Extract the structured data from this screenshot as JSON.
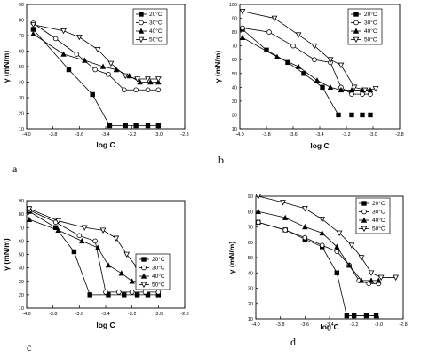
{
  "chart_data": [
    {
      "type": "line",
      "panel_label": "a",
      "xlabel": "log C",
      "ylabel": "γ (mN/m)",
      "xlim": [
        -4.0,
        -2.8
      ],
      "ylim": [
        10,
        90
      ],
      "xticks": [
        "-4.0",
        "-3.8",
        "-3.6",
        "-3.4",
        "-3.2",
        "-3.0",
        "-2.8"
      ],
      "yticks": [
        "10",
        "20",
        "30",
        "40",
        "50",
        "60",
        "70",
        "80",
        "90"
      ],
      "legend_position": "top-right",
      "series": [
        {
          "name": "20°C",
          "marker": "square-filled",
          "x": [
            -3.95,
            -3.68,
            -3.5,
            -3.37,
            -3.25,
            -3.17,
            -3.08,
            -3.0
          ],
          "y": [
            74,
            48,
            32,
            12,
            12,
            12,
            12,
            12
          ]
        },
        {
          "name": "30°C",
          "marker": "circle-open",
          "x": [
            -3.95,
            -3.78,
            -3.62,
            -3.48,
            -3.38,
            -3.26,
            -3.17,
            -3.08,
            -3.0
          ],
          "y": [
            78,
            68,
            58,
            48,
            45,
            35,
            35,
            35,
            35
          ]
        },
        {
          "name": "40°C",
          "marker": "triangle-filled",
          "x": [
            -3.95,
            -3.72,
            -3.56,
            -3.42,
            -3.32,
            -3.22,
            -3.14,
            -3.06,
            -3.0
          ],
          "y": [
            71,
            58,
            54,
            50,
            48,
            44,
            40,
            40,
            40
          ]
        },
        {
          "name": "50°C",
          "marker": "triangle-down-open",
          "x": [
            -3.95,
            -3.72,
            -3.6,
            -3.46,
            -3.36,
            -3.25,
            -3.16,
            -3.08,
            -3.0
          ],
          "y": [
            77,
            73,
            69,
            61,
            52,
            44,
            42,
            42,
            42
          ]
        }
      ]
    },
    {
      "type": "line",
      "panel_label": "b",
      "xlabel": "log C",
      "ylabel": "γ (mN/m)",
      "xlim": [
        -4.0,
        -2.8
      ],
      "ylim": [
        10,
        100
      ],
      "xticks": [
        "-4.0",
        "-3.8",
        "-3.6",
        "-3.4",
        "-3.2",
        "-3.0",
        "-2.8"
      ],
      "yticks": [
        "10",
        "20",
        "30",
        "40",
        "50",
        "60",
        "70",
        "80",
        "90",
        "100"
      ],
      "legend_position": "top-right",
      "series": [
        {
          "name": "20°C",
          "marker": "square-filled",
          "x": [
            -3.98,
            -3.8,
            -3.64,
            -3.52,
            -3.38,
            -3.26,
            -3.16,
            -3.08,
            -3.02
          ],
          "y": [
            82,
            67,
            58,
            50,
            40,
            20,
            20,
            20,
            20
          ]
        },
        {
          "name": "30°C",
          "marker": "circle-open",
          "x": [
            -3.98,
            -3.78,
            -3.6,
            -3.44,
            -3.32,
            -3.24,
            -3.16,
            -3.08,
            -3.02
          ],
          "y": [
            83,
            80,
            70,
            60,
            58,
            40,
            35,
            35,
            35
          ]
        },
        {
          "name": "40°C",
          "marker": "triangle-filled",
          "x": [
            -3.98,
            -3.72,
            -3.56,
            -3.42,
            -3.32,
            -3.24,
            -3.16,
            -3.08,
            -3.02
          ],
          "y": [
            76,
            62,
            55,
            45,
            40,
            38,
            38,
            38,
            38
          ]
        },
        {
          "name": "50°C",
          "marker": "triangle-down-open",
          "x": [
            -3.98,
            -3.74,
            -3.56,
            -3.44,
            -3.32,
            -3.24,
            -3.14,
            -3.06,
            -2.98
          ],
          "y": [
            95,
            90,
            78,
            70,
            60,
            56,
            40,
            38,
            39
          ]
        }
      ]
    },
    {
      "type": "line",
      "panel_label": "c",
      "xlabel": "log C",
      "ylabel": "γ (mN/m)",
      "xlim": [
        -4.0,
        -2.8
      ],
      "ylim": [
        10,
        90
      ],
      "xticks": [
        "-4.0",
        "-3.8",
        "-3.6",
        "-3.4",
        "-3.2",
        "-3.0",
        "-2.8"
      ],
      "yticks": [
        "10",
        "20",
        "30",
        "40",
        "50",
        "60",
        "70",
        "80",
        "90"
      ],
      "legend_position": "bottom-right",
      "series": [
        {
          "name": "20°C",
          "marker": "square-filled",
          "x": [
            -3.98,
            -3.78,
            -3.64,
            -3.52,
            -3.38,
            -3.26,
            -3.16,
            -3.08,
            -3.0
          ],
          "y": [
            82,
            70,
            52,
            20,
            20,
            20,
            20,
            20,
            20
          ]
        },
        {
          "name": "30°C",
          "marker": "circle-open",
          "x": [
            -3.98,
            -3.78,
            -3.6,
            -3.48,
            -3.4,
            -3.3,
            -3.2,
            -3.1,
            -3.0
          ],
          "y": [
            83,
            74,
            64,
            60,
            22,
            22,
            22,
            22,
            22
          ]
        },
        {
          "name": "40°C",
          "marker": "triangle-filled",
          "x": [
            -3.98,
            -3.76,
            -3.58,
            -3.46,
            -3.38,
            -3.28,
            -3.2,
            -3.1,
            -3.0
          ],
          "y": [
            76,
            68,
            60,
            55,
            42,
            36,
            30,
            30,
            30
          ]
        },
        {
          "name": "50°C",
          "marker": "triangle-down-open",
          "x": [
            -3.98,
            -3.76,
            -3.56,
            -3.42,
            -3.32,
            -3.24,
            -3.16,
            -3.08,
            -3.0
          ],
          "y": [
            84,
            75,
            70,
            68,
            62,
            50,
            40,
            40,
            40
          ]
        }
      ]
    },
    {
      "type": "line",
      "panel_label": "d",
      "xlabel": "log C",
      "ylabel": "γ (mN/m)",
      "xlim": [
        -4.0,
        -2.8
      ],
      "ylim": [
        10,
        90
      ],
      "xticks": [
        "-4.0",
        "-3.8",
        "-3.6",
        "-3.4",
        "-3.2",
        "-3.0",
        "-2.8"
      ],
      "yticks": [
        "10",
        "20",
        "30",
        "40",
        "50",
        "60",
        "70",
        "80",
        "90"
      ],
      "legend_position": "top-right",
      "series": [
        {
          "name": "20°C",
          "marker": "square-filled",
          "x": [
            -3.98,
            -3.76,
            -3.6,
            -3.46,
            -3.34,
            -3.26,
            -3.2,
            -3.1,
            -3.02
          ],
          "y": [
            73,
            68,
            62,
            57,
            40,
            12,
            12,
            12,
            12
          ]
        },
        {
          "name": "30°C",
          "marker": "circle-open",
          "x": [
            -3.98,
            -3.76,
            -3.6,
            -3.46,
            -3.34,
            -3.24,
            -3.16,
            -3.08,
            -3.0
          ],
          "y": [
            73,
            68,
            63,
            58,
            54,
            45,
            35,
            33,
            33
          ]
        },
        {
          "name": "40°C",
          "marker": "triangle-filled",
          "x": [
            -3.98,
            -3.76,
            -3.6,
            -3.46,
            -3.34,
            -3.24,
            -3.14,
            -3.06,
            -3.0
          ],
          "y": [
            80,
            76,
            70,
            66,
            57,
            45,
            35,
            35,
            35
          ]
        },
        {
          "name": "50°C",
          "marker": "triangle-down-open",
          "x": [
            -3.98,
            -3.78,
            -3.6,
            -3.46,
            -3.32,
            -3.22,
            -3.14,
            -3.06,
            -2.98,
            -2.86
          ],
          "y": [
            90,
            86,
            82,
            75,
            66,
            58,
            50,
            40,
            37,
            37
          ]
        }
      ]
    }
  ]
}
